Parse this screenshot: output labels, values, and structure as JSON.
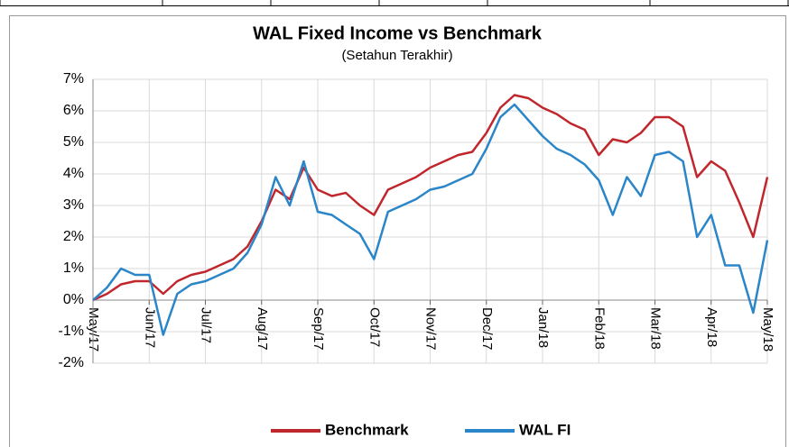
{
  "chart_data": {
    "type": "line",
    "title": "WAL Fixed Income vs Benchmark",
    "subtitle": "(Setahun Terakhir)",
    "categories": [
      "May/17",
      null,
      null,
      null,
      "Jun/17",
      null,
      null,
      null,
      "Jul/17",
      null,
      null,
      null,
      "Aug/17",
      null,
      null,
      null,
      "Sep/17",
      null,
      null,
      null,
      "Oct/17",
      null,
      null,
      null,
      "Nov/17",
      null,
      null,
      null,
      "Dec/17",
      null,
      null,
      null,
      "Jan/18",
      null,
      null,
      null,
      "Feb/18",
      null,
      null,
      null,
      "Mar/18",
      null,
      null,
      null,
      "Apr/18",
      null,
      null,
      null,
      "May/18"
    ],
    "series": [
      {
        "name": "Benchmark",
        "color": "#c0272d",
        "values": [
          0,
          0.2,
          0.5,
          0.6,
          0.6,
          0.2,
          0.6,
          0.8,
          0.9,
          1.1,
          1.3,
          1.7,
          2.5,
          3.5,
          3.2,
          4.2,
          3.5,
          3.3,
          3.4,
          3.0,
          2.7,
          3.5,
          3.7,
          3.9,
          4.2,
          4.4,
          4.6,
          4.7,
          5.3,
          6.1,
          6.5,
          6.4,
          6.1,
          5.9,
          5.6,
          5.4,
          4.6,
          5.1,
          5.0,
          5.3,
          5.8,
          5.8,
          5.5,
          3.9,
          4.4,
          4.1,
          3.1,
          2.0,
          3.9
        ]
      },
      {
        "name": "WAL FI",
        "color": "#2a86c8",
        "values": [
          0,
          0.4,
          1.0,
          0.8,
          0.8,
          -1.1,
          0.2,
          0.5,
          0.6,
          0.8,
          1.0,
          1.5,
          2.4,
          3.9,
          3.0,
          4.4,
          2.8,
          2.7,
          2.4,
          2.1,
          1.3,
          2.8,
          3.0,
          3.2,
          3.5,
          3.6,
          3.8,
          4.0,
          4.8,
          5.8,
          6.2,
          5.7,
          5.2,
          4.8,
          4.6,
          4.3,
          3.8,
          2.7,
          3.9,
          3.3,
          4.6,
          4.7,
          4.4,
          2.0,
          2.7,
          1.1,
          1.1,
          -0.4,
          1.9
        ]
      }
    ],
    "ylim": [
      -2,
      7
    ],
    "yticks": [
      {
        "value": -2,
        "label": "-2%"
      },
      {
        "value": -1,
        "label": "-1%"
      },
      {
        "value": 0,
        "label": "0%"
      },
      {
        "value": 1,
        "label": "1%"
      },
      {
        "value": 2,
        "label": "2%"
      },
      {
        "value": 3,
        "label": "3%"
      },
      {
        "value": 4,
        "label": "4%"
      },
      {
        "value": 5,
        "label": "5%"
      },
      {
        "value": 6,
        "label": "6%"
      },
      {
        "value": 7,
        "label": "7%"
      }
    ],
    "grid": true,
    "legend": "bottom"
  }
}
